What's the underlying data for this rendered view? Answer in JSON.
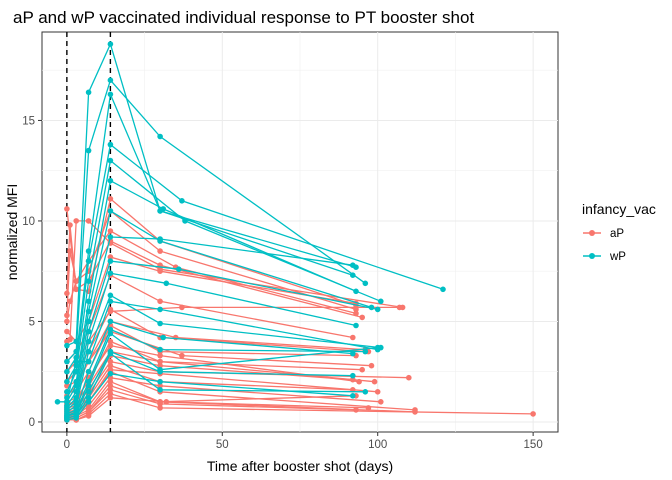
{
  "chart_data": {
    "type": "line",
    "title": "aP and wP vaccinated individual response to PT booster shot",
    "xlabel": "Time after booster shot (days)",
    "ylabel": "normalized MFI",
    "xlim": [
      -8,
      158
    ],
    "ylim": [
      -0.5,
      19.4
    ],
    "x_ticks": [
      0,
      50,
      100,
      150
    ],
    "y_ticks": [
      0,
      5,
      10,
      15
    ],
    "vlines": [
      0,
      14
    ],
    "grid": true,
    "legend": {
      "title": "infancy_vac",
      "position": "right",
      "entries": [
        {
          "label": "aP",
          "color": "#F8766D"
        },
        {
          "label": "wP",
          "color": "#00BFC4"
        }
      ]
    },
    "series": [
      {
        "name": "aP",
        "color": "#F8766D",
        "subjects": [
          [
            [
              0,
              10.6
            ],
            [
              3,
              6.6
            ],
            [
              7,
              6.5
            ],
            [
              14,
              11.1
            ],
            [
              30,
              9.0
            ],
            [
              93,
              5.8
            ]
          ],
          [
            [
              0,
              5.3
            ],
            [
              1,
              8.5
            ],
            [
              3,
              7.0
            ],
            [
              7,
              7.5
            ],
            [
              14,
              10.5
            ],
            [
              30,
              8.5
            ],
            [
              93,
              5.6
            ]
          ],
          [
            [
              0,
              6.4
            ],
            [
              1,
              9.8
            ],
            [
              3,
              6.6
            ],
            [
              7,
              7.0
            ],
            [
              14,
              9.0
            ],
            [
              30,
              7.8
            ],
            [
              95,
              5.2
            ]
          ],
          [
            [
              0,
              4.0
            ],
            [
              1,
              4.1
            ],
            [
              3,
              10.0
            ],
            [
              7,
              10.0
            ],
            [
              14,
              8.9
            ],
            [
              30,
              7.6
            ],
            [
              108,
              5.7
            ]
          ],
          [
            [
              0,
              5.0
            ],
            [
              1,
              6.0
            ],
            [
              3,
              7.0
            ],
            [
              7,
              8.0
            ],
            [
              14,
              9.5
            ],
            [
              35,
              7.7
            ],
            [
              93,
              5.4
            ]
          ],
          [
            [
              0,
              4.5
            ],
            [
              3,
              4.0
            ],
            [
              7,
              5.0
            ],
            [
              14,
              8.2
            ],
            [
              30,
              7.5
            ],
            [
              93,
              5.9
            ]
          ],
          [
            [
              0,
              3.0
            ],
            [
              3,
              3.5
            ],
            [
              7,
              4.5
            ],
            [
              14,
              7.3
            ],
            [
              30,
              6.0
            ],
            [
              92,
              4.2
            ]
          ],
          [
            [
              0,
              2.5
            ],
            [
              3,
              3.0
            ],
            [
              7,
              4.0
            ],
            [
              14,
              5.5
            ],
            [
              37,
              5.7
            ],
            [
              107,
              5.7
            ]
          ],
          [
            [
              0,
              2.0
            ],
            [
              3,
              2.5
            ],
            [
              7,
              3.5
            ],
            [
              14,
              5.6
            ],
            [
              30,
              4.2
            ],
            [
              97,
              3.5
            ]
          ],
          [
            [
              0,
              1.8
            ],
            [
              3,
              2.0
            ],
            [
              7,
              3.0
            ],
            [
              14,
              5.0
            ],
            [
              35,
              4.2
            ],
            [
              96,
              3.6
            ]
          ],
          [
            [
              0,
              1.5
            ],
            [
              3,
              1.5
            ],
            [
              7,
              2.5
            ],
            [
              14,
              4.8
            ],
            [
              30,
              3.5
            ],
            [
              93,
              3.3
            ]
          ],
          [
            [
              0,
              1.3
            ],
            [
              3,
              1.8
            ],
            [
              7,
              3.0
            ],
            [
              14,
              4.5
            ],
            [
              37,
              3.3
            ],
            [
              98,
              2.8
            ]
          ],
          [
            [
              0,
              1.0
            ],
            [
              3,
              1.2
            ],
            [
              7,
              2.0
            ],
            [
              14,
              4.0
            ],
            [
              30,
              3.0
            ],
            [
              95,
              2.6
            ]
          ],
          [
            [
              0,
              0.9
            ],
            [
              3,
              1.0
            ],
            [
              7,
              2.2
            ],
            [
              14,
              3.8
            ],
            [
              30,
              3.3
            ],
            [
              94,
              2.0
            ]
          ],
          [
            [
              0,
              0.8
            ],
            [
              3,
              1.0
            ],
            [
              7,
              1.8
            ],
            [
              14,
              3.5
            ],
            [
              30,
              3.0
            ],
            [
              99,
              2.0
            ]
          ],
          [
            [
              0,
              0.7
            ],
            [
              3,
              0.8
            ],
            [
              7,
              1.6
            ],
            [
              14,
              3.3
            ],
            [
              30,
              2.8
            ],
            [
              92,
              2.1
            ]
          ],
          [
            [
              0,
              0.6
            ],
            [
              3,
              0.7
            ],
            [
              7,
              1.4
            ],
            [
              14,
              3.0
            ],
            [
              30,
              2.5
            ],
            [
              110,
              2.2
            ]
          ],
          [
            [
              0,
              0.5
            ],
            [
              3,
              0.6
            ],
            [
              7,
              1.2
            ],
            [
              14,
              2.8
            ],
            [
              30,
              2.0
            ],
            [
              92,
              1.6
            ]
          ],
          [
            [
              0,
              0.4
            ],
            [
              3,
              0.5
            ],
            [
              7,
              1.0
            ],
            [
              14,
              2.6
            ],
            [
              30,
              2.4
            ],
            [
              100,
              1.5
            ]
          ],
          [
            [
              0,
              0.3
            ],
            [
              3,
              0.4
            ],
            [
              7,
              1.0
            ],
            [
              14,
              2.5
            ],
            [
              30,
              1.5
            ],
            [
              112,
              0.6
            ]
          ],
          [
            [
              0,
              0.3
            ],
            [
              3,
              0.3
            ],
            [
              7,
              0.8
            ],
            [
              14,
              2.2
            ],
            [
              30,
              1.8
            ],
            [
              101,
              1.0
            ]
          ],
          [
            [
              0,
              0.2
            ],
            [
              3,
              0.3
            ],
            [
              7,
              0.6
            ],
            [
              14,
              2.0
            ],
            [
              30,
              1.0
            ],
            [
              93,
              1.3
            ]
          ],
          [
            [
              0,
              0.2
            ],
            [
              3,
              0.2
            ],
            [
              7,
              0.5
            ],
            [
              14,
              1.8
            ],
            [
              30,
              1.0
            ],
            [
              112,
              0.5
            ]
          ],
          [
            [
              0,
              0.1
            ],
            [
              3,
              0.2
            ],
            [
              7,
              0.5
            ],
            [
              14,
              1.6
            ],
            [
              30,
              0.9
            ],
            [
              93,
              0.6
            ]
          ],
          [
            [
              0,
              0.1
            ],
            [
              3,
              0.1
            ],
            [
              7,
              0.4
            ],
            [
              14,
              1.4
            ],
            [
              30,
              0.7
            ],
            [
              150,
              0.4
            ]
          ],
          [
            [
              0,
              0.1
            ],
            [
              3,
              0.1
            ],
            [
              7,
              0.3
            ],
            [
              14,
              1.2
            ],
            [
              32,
              1.0
            ],
            [
              97,
              0.7
            ]
          ]
        ]
      },
      {
        "name": "wP",
        "color": "#00BFC4",
        "subjects": [
          [
            [
              0,
              3.8
            ],
            [
              3,
              4.0
            ],
            [
              7,
              16.4
            ],
            [
              14,
              18.8
            ],
            [
              30,
              10.5
            ],
            [
              93,
              7.7
            ]
          ],
          [
            [
              0,
              3.0
            ],
            [
              3,
              3.5
            ],
            [
              7,
              13.5
            ],
            [
              14,
              17.0
            ],
            [
              30,
              14.2
            ],
            [
              96,
              6.9
            ]
          ],
          [
            [
              0,
              2.5
            ],
            [
              3,
              3.2
            ],
            [
              7,
              8.5
            ],
            [
              14,
              16.3
            ],
            [
              30,
              10.5
            ],
            [
              92,
              7.3
            ]
          ],
          [
            [
              0,
              2.0
            ],
            [
              3,
              2.8
            ],
            [
              7,
              8.0
            ],
            [
              14,
              13.8
            ],
            [
              37,
              11.0
            ],
            [
              121,
              6.6
            ]
          ],
          [
            [
              0,
              1.5
            ],
            [
              3,
              2.5
            ],
            [
              7,
              7.0
            ],
            [
              14,
              13.0
            ],
            [
              38,
              10.0
            ],
            [
              101,
              6.0
            ]
          ],
          [
            [
              0,
              1.2
            ],
            [
              3,
              2.0
            ],
            [
              7,
              6.0
            ],
            [
              14,
              12.0
            ],
            [
              31,
              10.6
            ],
            [
              93,
              6.5
            ]
          ],
          [
            [
              0,
              1.0
            ],
            [
              3,
              1.8
            ],
            [
              7,
              5.5
            ],
            [
              14,
              10.5
            ],
            [
              30,
              9.0
            ],
            [
              98,
              5.7
            ]
          ],
          [
            [
              0,
              0.8
            ],
            [
              3,
              1.5
            ],
            [
              7,
              5.0
            ],
            [
              14,
              9.2
            ],
            [
              30,
              9.1
            ],
            [
              92,
              7.8
            ]
          ],
          [
            [
              0,
              0.7
            ],
            [
              3,
              1.2
            ],
            [
              7,
              4.5
            ],
            [
              14,
              8.0
            ],
            [
              36,
              7.6
            ],
            [
              100,
              5.6
            ]
          ],
          [
            [
              0,
              0.6
            ],
            [
              3,
              1.0
            ],
            [
              7,
              4.0
            ],
            [
              14,
              7.4
            ],
            [
              32,
              6.9
            ],
            [
              93,
              4.8
            ]
          ],
          [
            [
              0,
              0.5
            ],
            [
              3,
              0.8
            ],
            [
              7,
              3.5
            ],
            [
              14,
              6.3
            ],
            [
              30,
              4.9
            ],
            [
              101,
              3.7
            ]
          ],
          [
            [
              -3,
              1.0
            ],
            [
              0,
              1.0
            ],
            [
              3,
              3.0
            ],
            [
              7,
              3.0
            ],
            [
              14,
              6.0
            ],
            [
              30,
              5.6
            ],
            [
              100,
              3.6
            ]
          ],
          [
            [
              0,
              0.4
            ],
            [
              3,
              0.6
            ],
            [
              7,
              2.5
            ],
            [
              14,
              5.0
            ],
            [
              31,
              4.2
            ],
            [
              92,
              3.4
            ]
          ],
          [
            [
              0,
              0.3
            ],
            [
              3,
              0.5
            ],
            [
              7,
              2.0
            ],
            [
              14,
              4.6
            ],
            [
              30,
              3.6
            ],
            [
              96,
              3.5
            ]
          ],
          [
            [
              0,
              0.3
            ],
            [
              3,
              0.4
            ],
            [
              7,
              1.8
            ],
            [
              14,
              4.4
            ],
            [
              30,
              2.6
            ],
            [
              100,
              3.7
            ]
          ],
          [
            [
              0,
              0.2
            ],
            [
              3,
              0.3
            ],
            [
              7,
              1.5
            ],
            [
              14,
              3.5
            ],
            [
              30,
              2.5
            ],
            [
              92,
              2.3
            ]
          ],
          [
            [
              0,
              0.2
            ],
            [
              3,
              0.3
            ],
            [
              7,
              1.2
            ],
            [
              14,
              3.4
            ],
            [
              30,
              1.6
            ],
            [
              96,
              1.5
            ]
          ],
          [
            [
              0,
              0.1
            ],
            [
              3,
              0.2
            ],
            [
              7,
              1.0
            ],
            [
              14,
              2.4
            ],
            [
              30,
              2.0
            ],
            [
              92,
              1.3
            ]
          ]
        ]
      }
    ]
  }
}
